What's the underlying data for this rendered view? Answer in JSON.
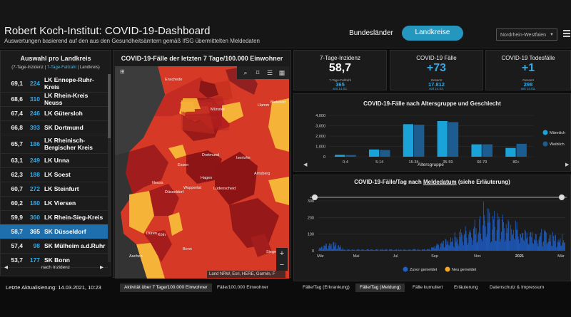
{
  "header": {
    "title": "Robert Koch-Institut: COVID-19-Dashboard",
    "subtitle": "Auswertungen basierend auf den aus den Gesundheitsämtern gemäß IfSG übermittelten Meldedaten",
    "nav_bundeslaender": "Bundesländer",
    "nav_landkreise": "Landkreise",
    "state_selected": "Nordrhein-Westfalen"
  },
  "left": {
    "title": "Auswahl pro Landkreis",
    "subtitle_a": "(7-Tage-Inzidenz | ",
    "subtitle_b": "7-Tage-Fallzahl",
    "subtitle_c": " | Landkreis)",
    "rows": [
      {
        "inz": "69,1",
        "cases": "224",
        "name": "LK Ennepe-Ruhr-Kreis"
      },
      {
        "inz": "68,6",
        "cases": "310",
        "name": "LK Rhein-Kreis Neuss"
      },
      {
        "inz": "67,4",
        "cases": "246",
        "name": "LK Gütersloh"
      },
      {
        "inz": "66,8",
        "cases": "393",
        "name": "SK Dortmund"
      },
      {
        "inz": "65,7",
        "cases": "186",
        "name": "LK Rheinisch-Bergischer Kreis"
      },
      {
        "inz": "63,1",
        "cases": "249",
        "name": "LK Unna"
      },
      {
        "inz": "62,3",
        "cases": "188",
        "name": "LK Soest"
      },
      {
        "inz": "60,7",
        "cases": "272",
        "name": "LK Steinfurt"
      },
      {
        "inz": "60,2",
        "cases": "180",
        "name": "LK Viersen"
      },
      {
        "inz": "59,9",
        "cases": "360",
        "name": "LK Rhein-Sieg-Kreis"
      },
      {
        "inz": "58,7",
        "cases": "365",
        "name": "SK Düsseldorf"
      },
      {
        "inz": "57,4",
        "cases": "98",
        "name": "SK Mülheim a.d.Ruhr"
      },
      {
        "inz": "53,7",
        "cases": "177",
        "name": "SK Bonn"
      }
    ],
    "footer": "nach Inzidenz",
    "last_update": "Letzte Aktualisierung: 14.03.2021, 10:23"
  },
  "map": {
    "title": "COVID-19-Fälle der letzten 7 Tage/100.000 Einwohner",
    "attribution": "Land NRW, Esri, HERE, Garmin, F",
    "cities": [
      "Enschede",
      "Münster",
      "Hamm",
      "Bielefeld",
      "Dortmund",
      "Essen",
      "Hagen",
      "Arnsberg",
      "Düsseldorf",
      "Wuppertal",
      "Lüdenscheid",
      "Neuss",
      "Köln",
      "Siegen",
      "Düren",
      "Bonn",
      "Aachen",
      "Iserlohn"
    ],
    "tabs": [
      "Aktivität über 7 Tage/100.000 Einwohner",
      "Fälle/100.000 Einwohner"
    ]
  },
  "kpis": [
    {
      "label": "7-Tage-Inzidenz",
      "value": "58,7",
      "sub1": "7-Tage-Fallzahl",
      "sub2": "365",
      "sub3": "seit 14.03."
    },
    {
      "label": "COVID-19 Fälle",
      "value": "+73",
      "sub1": "Gesamt",
      "sub2": "17.812",
      "sub3": "seit 14.03."
    },
    {
      "label": "COVID-19 Todesfälle",
      "value": "+1",
      "sub1": "Gesamt",
      "sub2": "298",
      "sub3": "seit 14.03."
    }
  ],
  "colors": {
    "accent": "#2596be",
    "maennlich": "#1aa3d9",
    "weiblich": "#1d5c8f",
    "zuvor": "#1e5fc9",
    "neu": "#f5a623"
  },
  "chart_data": [
    {
      "type": "bar",
      "title": "COVID-19-Fälle nach Altersgruppe und Geschlecht",
      "xlabel": "Altersgruppe",
      "categories": [
        "0-4",
        "5-14",
        "15-34",
        "35-59",
        "60-79",
        "80+"
      ],
      "yticks": [
        "0",
        "1,000",
        "2,000",
        "3,000",
        "4,000"
      ],
      "ylim": [
        0,
        4000
      ],
      "series": [
        {
          "name": "Männlich",
          "values": [
            180,
            700,
            3150,
            3450,
            1200,
            850
          ]
        },
        {
          "name": "Weiblich",
          "values": [
            160,
            650,
            3100,
            3350,
            1200,
            1250
          ]
        }
      ],
      "legend": "right"
    },
    {
      "type": "bar",
      "title_pre": "COVID-19-Fälle/Tag nach ",
      "title_link": "Meldedatum",
      "title_post": " (siehe Erläuterung)",
      "xticks": [
        "Mär",
        "Mai",
        "Jul",
        "Sep",
        "Nov",
        "2021",
        "Mär"
      ],
      "yticks": [
        "0",
        "100",
        "200",
        "300"
      ],
      "ylim": [
        0,
        300
      ],
      "series": [
        {
          "name": "Zuvor gemeldet"
        },
        {
          "name": "Neu gemeldet"
        }
      ]
    }
  ],
  "bottom_tabs": [
    "Fälle/Tag (Erkrankung)",
    "Fälle/Tag (Meldung)",
    "Fälle kumuliert",
    "Erläuterung",
    "Datenschutz & Impressum"
  ]
}
